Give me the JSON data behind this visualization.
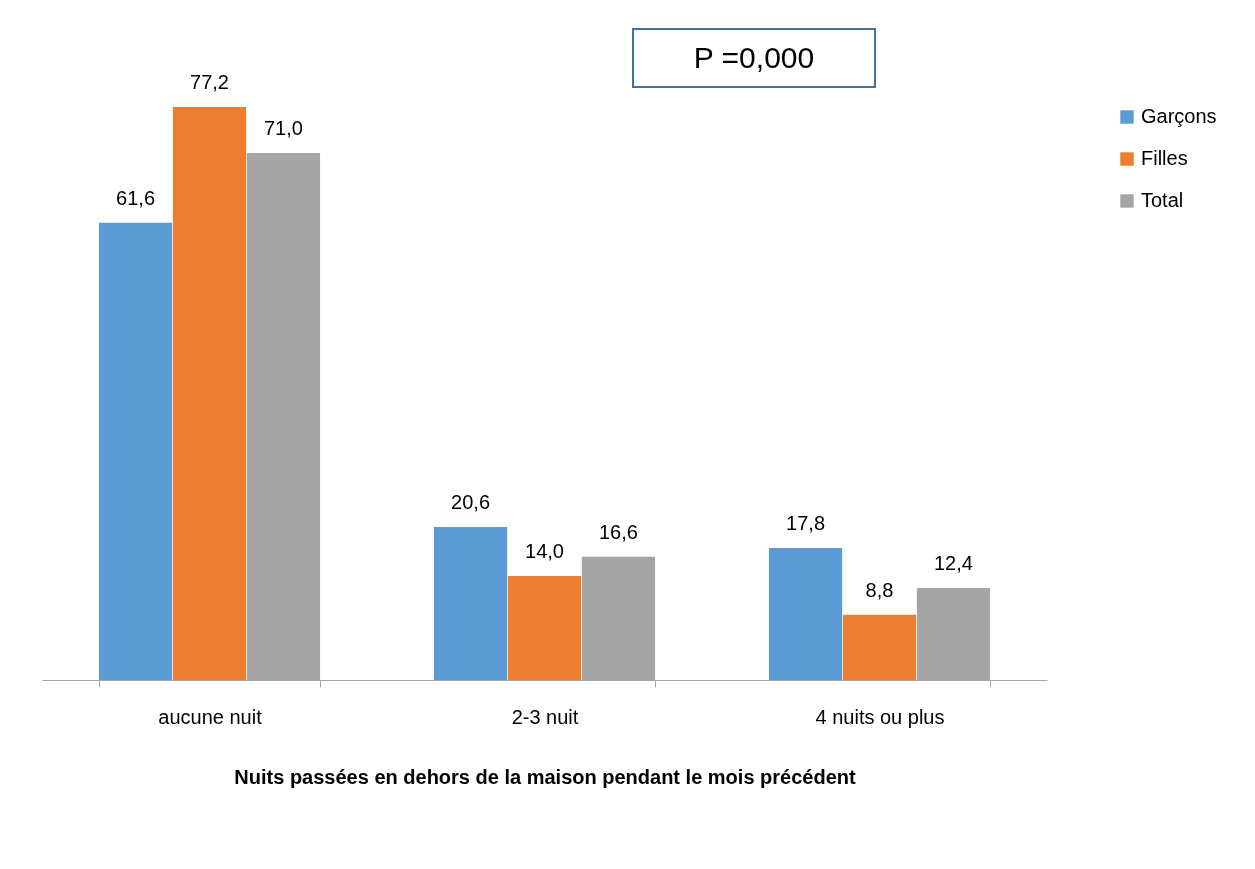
{
  "chart_data": {
    "type": "bar",
    "xlabel": "Nuits passées en dehors de la maison pendant le mois précédent",
    "categories": [
      "aucune nuit",
      "2-3 nuit",
      "4 nuits ou plus"
    ],
    "series": [
      {
        "name": "Garçons",
        "color": "#5b9bd5",
        "values": [
          61.6,
          20.6,
          17.8
        ],
        "value_labels": [
          "61,6",
          "20,6",
          "17,8"
        ]
      },
      {
        "name": "Filles",
        "color": "#ed7d31",
        "values": [
          77.2,
          14.0,
          8.8
        ],
        "value_labels": [
          "77,2",
          "14,0",
          "8,8"
        ]
      },
      {
        "name": "Total",
        "color": "#a5a5a5",
        "values": [
          71.0,
          16.6,
          12.4
        ],
        "value_labels": [
          "71,0",
          "16,6",
          "12,4"
        ]
      }
    ],
    "legend": "right",
    "grid": false,
    "annotations": [
      "P =0,000"
    ]
  }
}
